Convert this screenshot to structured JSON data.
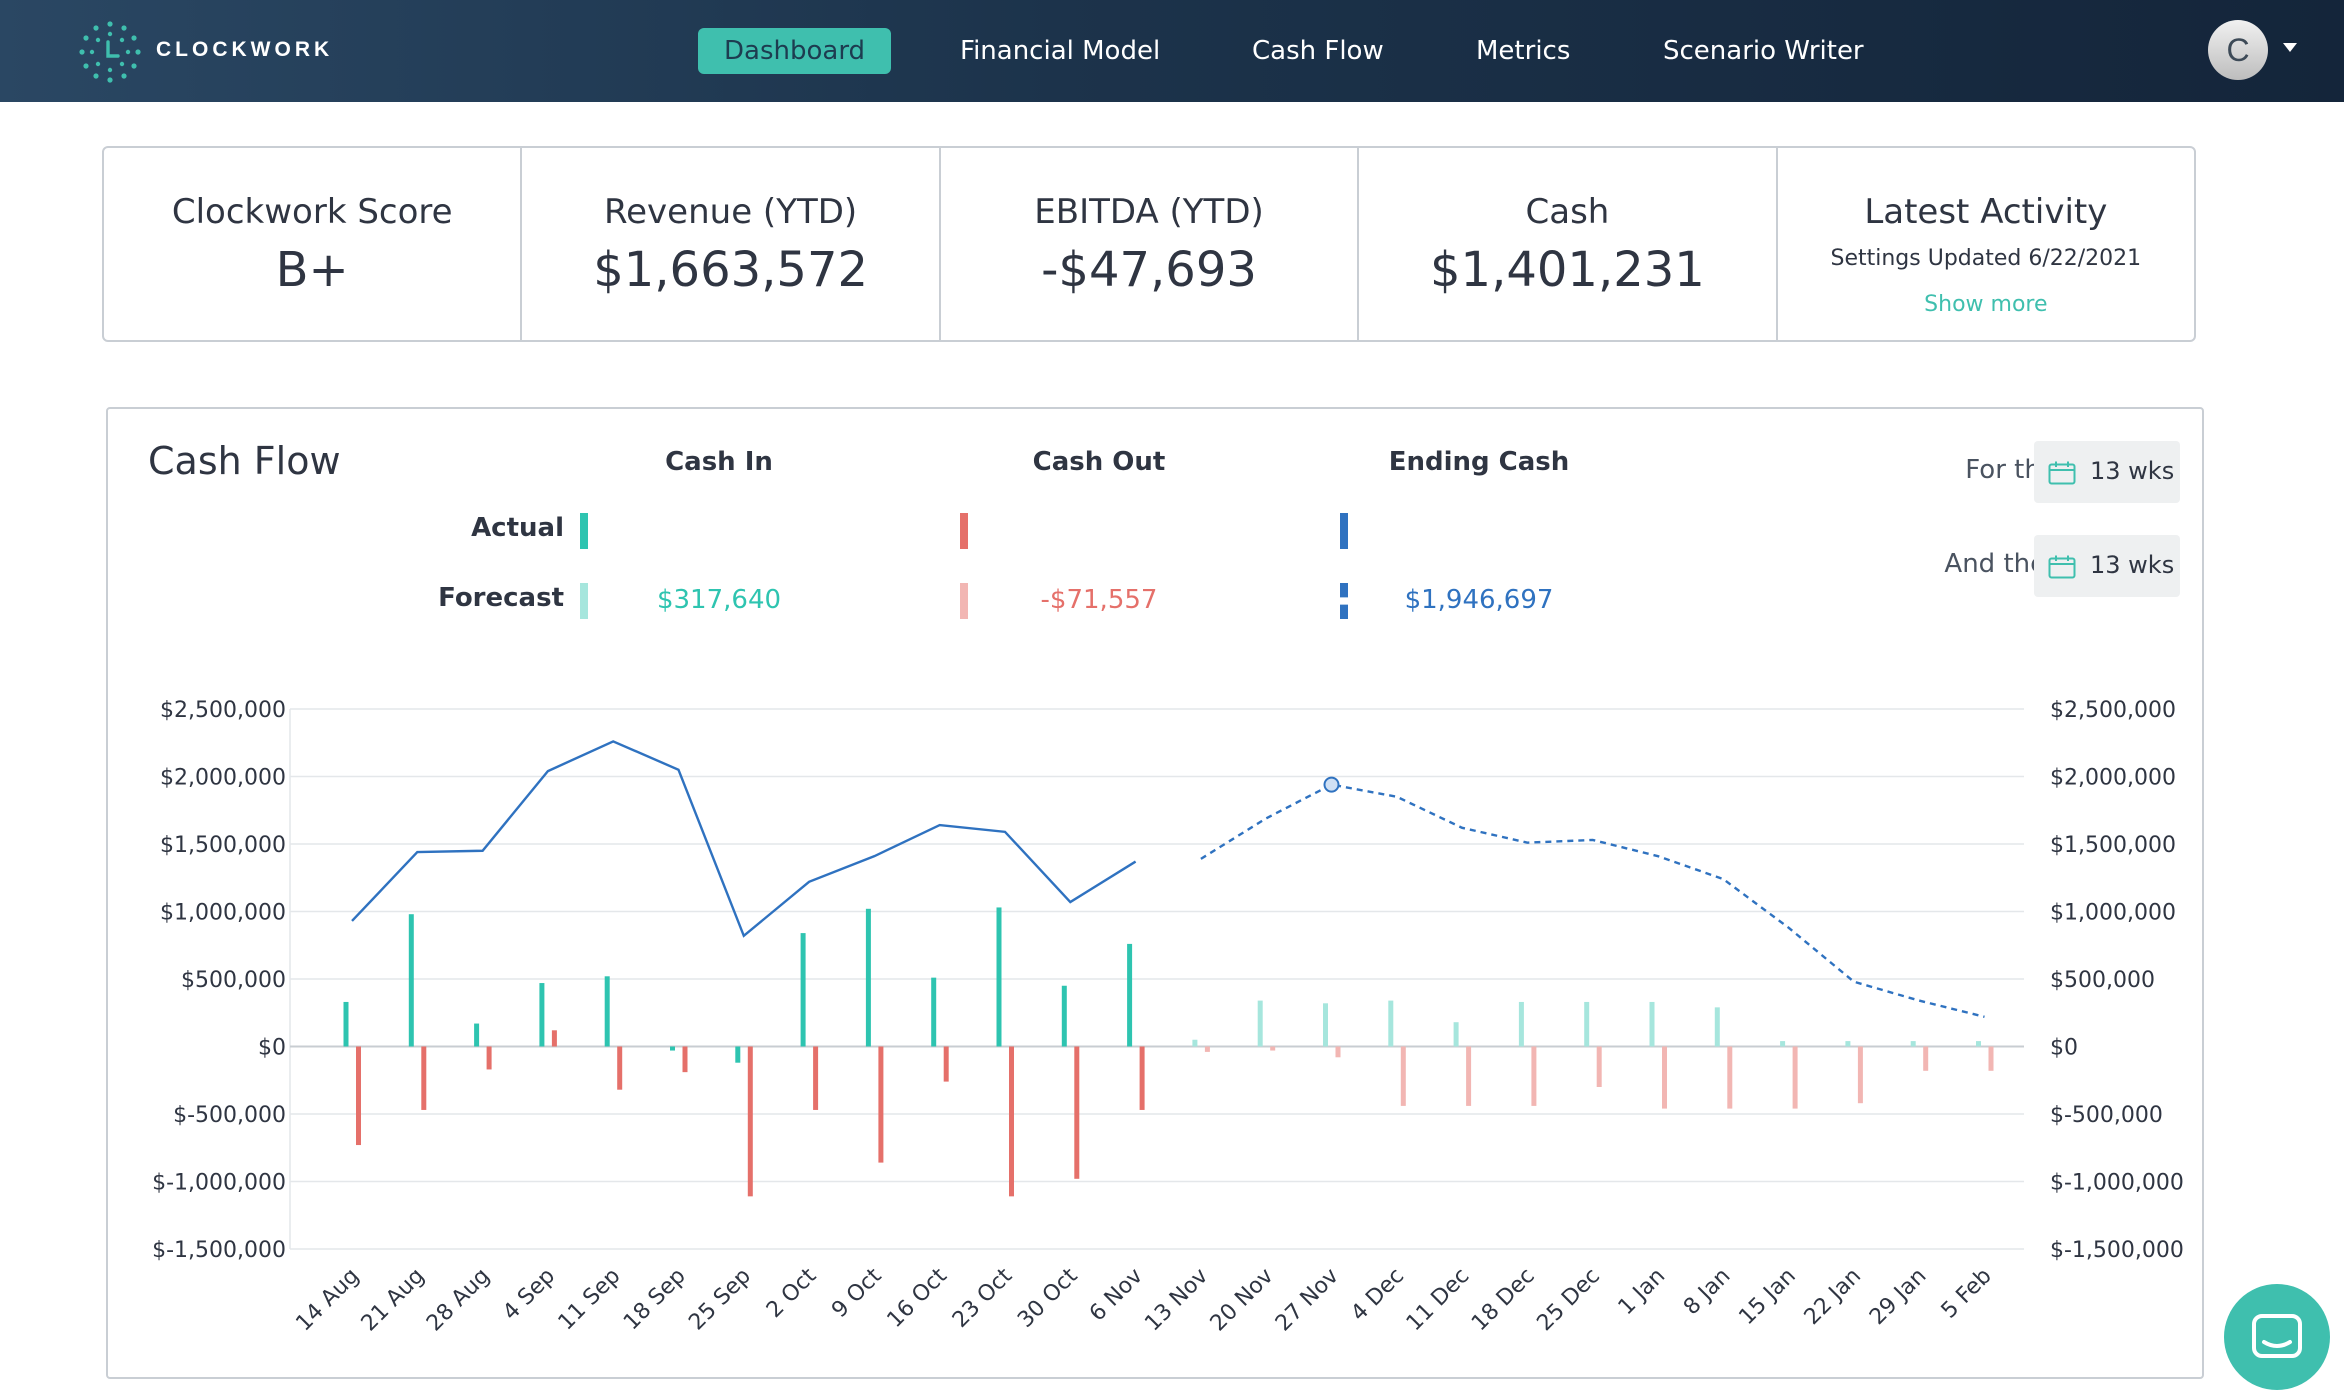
{
  "app": {
    "brand": "CLOCKWORK",
    "user_initial": "C"
  },
  "nav": [
    "Dashboard",
    "Financial Model",
    "Cash Flow",
    "Metrics",
    "Scenario Writer"
  ],
  "kpis": {
    "score": {
      "label": "Clockwork Score",
      "value": "B+"
    },
    "revenue": {
      "label": "Revenue (YTD)",
      "value": "$1,663,572"
    },
    "ebitda": {
      "label": "EBITDA (YTD)",
      "value": "-$47,693"
    },
    "cash": {
      "label": "Cash",
      "value": "$1,401,231"
    },
    "activity": {
      "label": "Latest Activity",
      "detail": "Settings Updated 6/22/2021",
      "link": "Show more"
    }
  },
  "cashflow": {
    "title": "Cash Flow",
    "headers": {
      "cash_in": "Cash In",
      "cash_out": "Cash Out",
      "ending_cash": "Ending Cash"
    },
    "rows": {
      "actual": "Actual",
      "forecast": "Forecast"
    },
    "forecast_values": {
      "cash_in": "$317,640",
      "cash_out": "-$71,557",
      "ending_cash": "$1,946,697"
    },
    "range": {
      "last_label": "For the last",
      "last_value": "13 wks",
      "next_label": "And the next",
      "next_value": "13 wks"
    },
    "colors": {
      "cash_in": "#2ec4b0",
      "cash_out": "#e5706a",
      "ending_cash": "#2f72c0",
      "cash_in_forecast": "#a6e6dd",
      "cash_out_forecast": "#f2b6b3"
    }
  },
  "chart_data": {
    "type": "bar",
    "categories": [
      "14 Aug",
      "21 Aug",
      "28 Aug",
      "4 Sep",
      "11 Sep",
      "18 Sep",
      "25 Sep",
      "2 Oct",
      "9 Oct",
      "16 Oct",
      "23 Oct",
      "30 Oct",
      "6 Nov",
      "13 Nov",
      "20 Nov",
      "27 Nov",
      "4 Dec",
      "11 Dec",
      "18 Dec",
      "25 Dec",
      "1 Jan",
      "8 Jan",
      "15 Jan",
      "22 Jan",
      "29 Jan",
      "5 Feb"
    ],
    "actual_count": 13,
    "y_ticks": [
      "$2,500,000",
      "$2,000,000",
      "$1,500,000",
      "$1,000,000",
      "$500,000",
      "$0",
      "$-500,000",
      "$-1,000,000",
      "$-1,500,000"
    ],
    "ylim": [
      -1500000,
      2500000
    ],
    "grid": true,
    "series": [
      {
        "name": "Cash In",
        "type": "bar",
        "values": [
          330000,
          980000,
          170000,
          470000,
          520000,
          -30000,
          -120000,
          840000,
          1020000,
          510000,
          1030000,
          450000,
          760000,
          50000,
          340000,
          320000,
          340000,
          180000,
          330000,
          330000,
          330000,
          290000,
          40000,
          40000,
          40000,
          40000
        ]
      },
      {
        "name": "Cash Out",
        "type": "bar",
        "values": [
          -730000,
          -470000,
          -170000,
          120000,
          -320000,
          -190000,
          -1110000,
          -470000,
          -860000,
          -260000,
          -1110000,
          -980000,
          -470000,
          -40000,
          -30000,
          -80000,
          -440000,
          -440000,
          -440000,
          -300000,
          -460000,
          -460000,
          -460000,
          -420000,
          -180000,
          -180000
        ]
      },
      {
        "name": "Ending Cash",
        "type": "line",
        "values": [
          930000,
          1440000,
          1450000,
          2040000,
          2260000,
          2050000,
          820000,
          1220000,
          1410000,
          1640000,
          1590000,
          1070000,
          1370000,
          1390000,
          1690000,
          1940000,
          1850000,
          1620000,
          1510000,
          1530000,
          1410000,
          1240000,
          880000,
          480000,
          340000,
          220000
        ]
      }
    ]
  }
}
